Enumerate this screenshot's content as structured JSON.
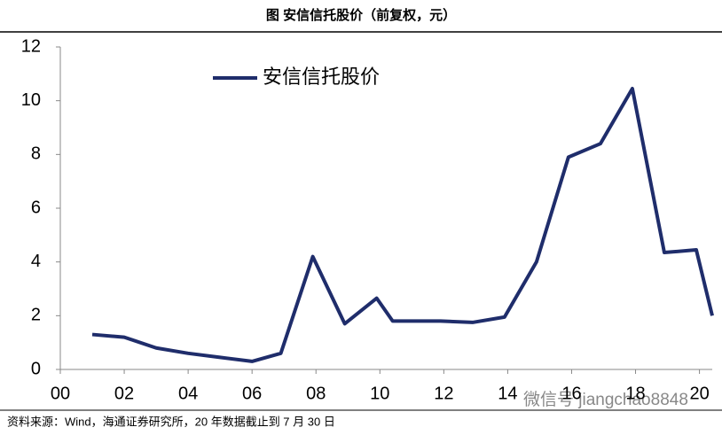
{
  "chart_data": {
    "type": "line",
    "title": "图  安信信托股价（前复权，元）",
    "source": "资料来源：Wind，海通证券研究所，20 年数据截止到 7 月 30 日",
    "watermark": "微信号 jiangchao8848",
    "x": [
      1,
      2,
      3,
      4,
      5,
      6,
      6.9,
      7.9,
      8.9,
      9.9,
      10.4,
      11.9,
      12.9,
      13.9,
      14.9,
      15.9,
      16.9,
      17.9,
      18.9,
      19.9,
      20.4
    ],
    "series": [
      {
        "name": "安信信托股价",
        "color": "#1f2d6b",
        "values": [
          1.3,
          1.2,
          0.8,
          0.6,
          0.45,
          0.3,
          0.6,
          4.2,
          1.7,
          2.65,
          1.8,
          1.8,
          1.75,
          1.95,
          4.0,
          7.9,
          8.4,
          10.45,
          4.35,
          4.45,
          2.0
        ]
      }
    ],
    "xlim": [
      0,
      20.4
    ],
    "xticks": [
      {
        "value": 0,
        "label": "00"
      },
      {
        "value": 2,
        "label": "02"
      },
      {
        "value": 4,
        "label": "04"
      },
      {
        "value": 6,
        "label": "06"
      },
      {
        "value": 8,
        "label": "08"
      },
      {
        "value": 10,
        "label": "10"
      },
      {
        "value": 12,
        "label": "12"
      },
      {
        "value": 14,
        "label": "14"
      },
      {
        "value": 16,
        "label": "16"
      },
      {
        "value": 18,
        "label": "18"
      },
      {
        "value": 20,
        "label": "20"
      }
    ],
    "ylim": [
      0,
      12
    ],
    "yticks": [
      0,
      2,
      4,
      6,
      8,
      10,
      12
    ],
    "grid": false
  }
}
